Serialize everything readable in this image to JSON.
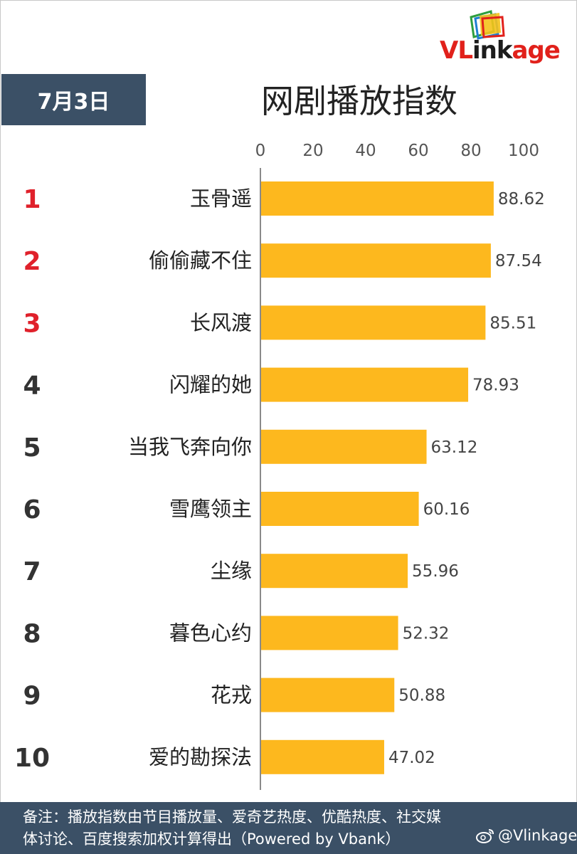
{
  "logo": {
    "text_part1": "VL",
    "text_part2": "ink",
    "text_part3": "age"
  },
  "header": {
    "date": "7月3日",
    "title": "网剧播放指数"
  },
  "chart_data": {
    "type": "bar",
    "orientation": "horizontal",
    "title": "网剧播放指数",
    "xlim": [
      0,
      100
    ],
    "ticks": [
      "0",
      "20",
      "40",
      "60",
      "80",
      "100"
    ],
    "tick_values": [
      0,
      20,
      40,
      60,
      80,
      100
    ],
    "grid": false,
    "bar_color": "#fdb81e",
    "top_rank_color": "#e0212b",
    "rank_color": "#333333",
    "ranks": [
      "1",
      "2",
      "3",
      "4",
      "5",
      "6",
      "7",
      "8",
      "9",
      "10"
    ],
    "categories": [
      "玉骨遥",
      "偷偷藏不住",
      "长风渡",
      "闪耀的她",
      "当我飞奔向你",
      "雪鹰领主",
      "尘缘",
      "暮色心约",
      "花戎",
      "爱的勘探法"
    ],
    "values": [
      88.62,
      87.54,
      85.51,
      78.93,
      63.12,
      60.16,
      55.96,
      52.32,
      50.88,
      47.02
    ],
    "value_labels": [
      "88.62",
      "87.54",
      "85.51",
      "78.93",
      "63.12",
      "60.16",
      "55.96",
      "52.32",
      "50.88",
      "47.02"
    ]
  },
  "footer": {
    "note": "备注：播放指数由节目播放量、爱奇艺热度、优酷热度、社交媒体讨论、百度搜索加权计算得出（Powered by Vbank）",
    "handle": "@Vlinkage"
  },
  "colors": {
    "navy": "#3b5066",
    "bar": "#fdb81e",
    "brand_red": "#e1211b"
  }
}
